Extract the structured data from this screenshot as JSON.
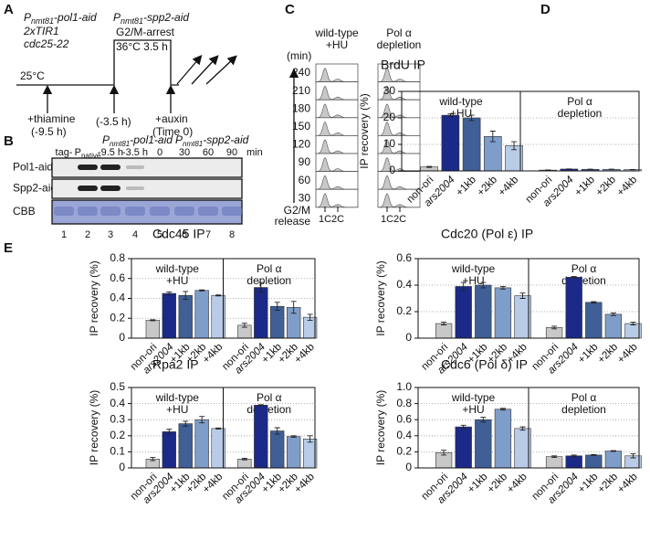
{
  "panel_letters": [
    "A",
    "B",
    "C",
    "D",
    "E"
  ],
  "panel_a": {
    "pol1": {
      "pre": "P",
      "sub": "nmt81",
      "post": "-pol1-aid"
    },
    "tir": "2xTIR1",
    "cdc": "cdc25-22",
    "spp2": {
      "pre": "P",
      "sub": "nmt81",
      "post": "-spp2-aid"
    },
    "arrest": "G2/M-arrest",
    "temp_high": "36°C 3.5 h",
    "temp_low": "25°C",
    "thiamine": "+thiamine",
    "thiamine_time": "(-9.5 h)",
    "shift_time": "(-3.5 h)",
    "auxin": "+auxin",
    "auxin_time": "(Time 0)"
  },
  "panel_b": {
    "groups": [
      {
        "pre": "P",
        "sub": "nmt81",
        "post": "-pol1-aid"
      },
      {
        "pre": "P",
        "sub": "nmt81",
        "post": "-spp2-aid"
      }
    ],
    "lanes": [
      {
        "pre": "tag-"
      },
      {
        "pre": "P",
        "sub": "native"
      },
      {
        "pre": "-9.5 h"
      },
      {
        "pre": "-3.5 h"
      },
      {
        "pre": "0"
      },
      {
        "pre": "30"
      },
      {
        "pre": "60"
      },
      {
        "pre": "90"
      }
    ],
    "unit": "min",
    "rows": [
      "Pol1-aid",
      "Spp2-aid",
      "CBB"
    ],
    "lane_numbers": [
      1,
      2,
      3,
      4,
      5,
      6,
      7,
      8
    ]
  },
  "panel_c": {
    "columns": [
      [
        "wild-type",
        "+HU"
      ],
      [
        "Pol α",
        "depletion"
      ]
    ],
    "unit": "(min)",
    "times": [
      240,
      210,
      180,
      150,
      120,
      90,
      60,
      30
    ],
    "release": [
      "G2/M",
      "release"
    ],
    "dna": [
      "1C",
      "2C"
    ]
  },
  "chart_data": [
    {
      "type": "bar",
      "title": "BrdU IP",
      "ylabel": "IP recovery (%)",
      "categories": [
        "non-ori",
        "ars2004",
        "+1kb",
        "+2kb",
        "+4kb"
      ],
      "italic_categories": [
        1
      ],
      "colors": [
        "#c8c8c8",
        "#1b2a88",
        "#3f5f96",
        "#7f9dc9",
        "#b8cbe7"
      ],
      "ylim": [
        0,
        30
      ],
      "yticks": [
        0,
        10,
        20,
        30
      ],
      "grid": true,
      "groups": [
        {
          "label": [
            "wild-type",
            "+HU"
          ],
          "values": [
            1.5,
            21,
            20,
            13,
            9.5
          ],
          "errors": [
            0.2,
            0.5,
            1,
            2,
            1.5
          ]
        },
        {
          "label": [
            "Pol α",
            "depletion"
          ],
          "values": [
            0.3,
            0.7,
            0.6,
            0.6,
            0.5
          ],
          "errors": [
            0.05,
            0.05,
            0.05,
            0.05,
            0.05
          ]
        }
      ]
    },
    {
      "type": "bar",
      "title": "Cdc45 IP",
      "ylabel": "IP recovery (%)",
      "categories": [
        "non-ori",
        "ars2004",
        "+1kb",
        "+2kb",
        "+4kb"
      ],
      "italic_categories": [
        1
      ],
      "colors": [
        "#c8c8c8",
        "#1b2a88",
        "#3f5f96",
        "#7f9dc9",
        "#b8cbe7"
      ],
      "ylim": [
        0,
        0.8
      ],
      "yticks": [
        0,
        0.2,
        0.4,
        0.6,
        0.8
      ],
      "grid": true,
      "groups": [
        {
          "label": [
            "wild-type",
            "+HU"
          ],
          "values": [
            0.18,
            0.45,
            0.43,
            0.48,
            0.43
          ],
          "errors": [
            0.005,
            0.015,
            0.04,
            0.005,
            0.005
          ]
        },
        {
          "label": [
            "Pol α",
            "depletion"
          ],
          "values": [
            0.13,
            0.51,
            0.32,
            0.31,
            0.21
          ],
          "errors": [
            0.02,
            0.05,
            0.04,
            0.06,
            0.03
          ]
        }
      ]
    },
    {
      "type": "bar",
      "title": "Cdc20 (Pol ε) IP",
      "ylabel": "IP recovery (%)",
      "categories": [
        "non-ori",
        "ars2004",
        "+1kb",
        "+2kb",
        "+4kb"
      ],
      "italic_categories": [
        1
      ],
      "colors": [
        "#c8c8c8",
        "#1b2a88",
        "#3f5f96",
        "#7f9dc9",
        "#b8cbe7"
      ],
      "ylim": [
        0,
        0.6
      ],
      "yticks": [
        0,
        0.2,
        0.4,
        0.6
      ],
      "grid": true,
      "groups": [
        {
          "label": [
            "wild-type",
            "+HU"
          ],
          "values": [
            0.11,
            0.39,
            0.4,
            0.38,
            0.32
          ],
          "errors": [
            0.01,
            0.03,
            0.02,
            0.01,
            0.02
          ]
        },
        {
          "label": [
            "Pol α",
            "depletion"
          ],
          "values": [
            0.08,
            0.46,
            0.27,
            0.18,
            0.11
          ],
          "errors": [
            0.01,
            0.005,
            0.005,
            0.01,
            0.01
          ]
        }
      ]
    },
    {
      "type": "bar",
      "title": "Rpa2 IP",
      "ylabel": "IP recovery (%)",
      "categories": [
        "non-ori",
        "ars2004",
        "+1kb",
        "+2kb",
        "+4kb"
      ],
      "italic_categories": [
        1
      ],
      "colors": [
        "#c8c8c8",
        "#1b2a88",
        "#3f5f96",
        "#7f9dc9",
        "#b8cbe7"
      ],
      "ylim": [
        0,
        0.5
      ],
      "yticks": [
        0,
        0.1,
        0.2,
        0.3,
        0.4,
        0.5
      ],
      "grid": true,
      "groups": [
        {
          "label": [
            "wild-type",
            "+HU"
          ],
          "values": [
            0.055,
            0.225,
            0.275,
            0.3,
            0.245
          ],
          "errors": [
            0.01,
            0.015,
            0.015,
            0.02,
            0.003
          ]
        },
        {
          "label": [
            "Pol α",
            "depletion"
          ],
          "values": [
            0.055,
            0.39,
            0.23,
            0.195,
            0.18
          ],
          "errors": [
            0.005,
            0.003,
            0.02,
            0.005,
            0.02
          ]
        }
      ]
    },
    {
      "type": "bar",
      "title": "Cdc6 (Pol δ) IP",
      "ylabel": "IP recovery (%)",
      "categories": [
        "non-ori",
        "ars2004",
        "+1kb",
        "+2kb",
        "+4kb"
      ],
      "italic_categories": [
        1
      ],
      "colors": [
        "#c8c8c8",
        "#1b2a88",
        "#3f5f96",
        "#7f9dc9",
        "#b8cbe7"
      ],
      "ylim": [
        0,
        1
      ],
      "yticks": [
        0,
        0.2,
        0.4,
        0.6,
        0.8,
        {
          "value": 1,
          "label": "1.0"
        }
      ],
      "grid": true,
      "groups": [
        {
          "label": [
            "wild-type",
            "+HU"
          ],
          "values": [
            0.19,
            0.51,
            0.6,
            0.73,
            0.49
          ],
          "errors": [
            0.03,
            0.02,
            0.03,
            0.01,
            0.02
          ]
        },
        {
          "label": [
            "Pol α",
            "depletion"
          ],
          "values": [
            0.14,
            0.15,
            0.16,
            0.21,
            0.15
          ],
          "errors": [
            0.01,
            0.01,
            0.005,
            0.005,
            0.025
          ]
        }
      ]
    }
  ]
}
